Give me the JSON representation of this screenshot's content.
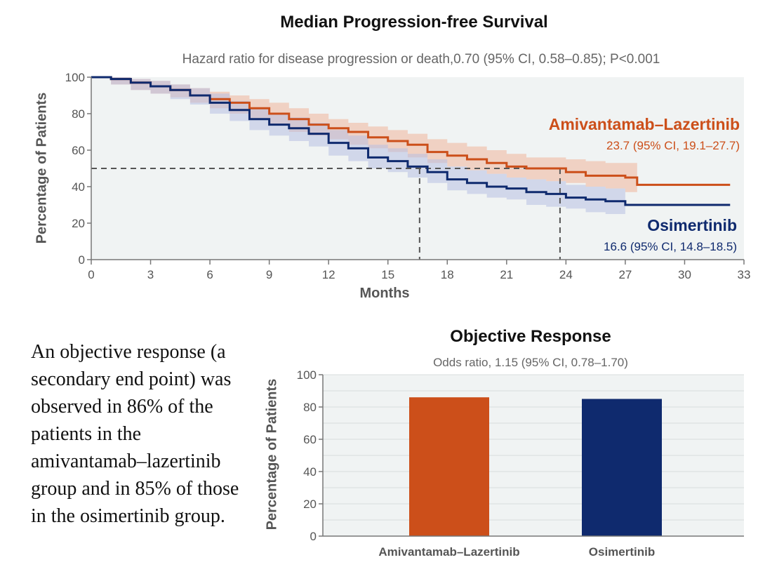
{
  "chart_data": [
    {
      "type": "line",
      "title": "Median Progression-free Survival",
      "subtitle": "Hazard ratio for disease progression or death,0.70 (95% CI, 0.58–0.85); P<0.001",
      "xlabel": "Months",
      "ylabel": "Percentage of Patients",
      "xlim": [
        0,
        33
      ],
      "ylim": [
        0,
        100
      ],
      "xticks": [
        "0",
        "3",
        "6",
        "9",
        "12",
        "15",
        "18",
        "21",
        "24",
        "27",
        "30",
        "33"
      ],
      "yticks": [
        "0",
        "20",
        "40",
        "60",
        "80",
        "100"
      ],
      "grid": false,
      "reference_line_y": 50,
      "series": [
        {
          "name": "Amivantamab–Lazertinib",
          "median_label": "23.7 (95% CI, 19.1–27.7)",
          "median_x": 23.7,
          "color": "#cc4f1a",
          "band_color": "#f0b49a",
          "x": [
            0,
            1,
            2,
            3,
            4,
            5,
            6,
            7,
            8,
            9,
            10,
            11,
            12,
            13,
            14,
            15,
            16,
            17,
            18,
            19,
            20,
            21,
            22,
            23,
            24,
            25,
            26,
            27,
            27.6,
            28,
            29,
            30,
            31,
            32.3
          ],
          "y": [
            100,
            99,
            97,
            95,
            93,
            90,
            88,
            86,
            83,
            80,
            77,
            74,
            72,
            70,
            67,
            65,
            63,
            59,
            57,
            55,
            53,
            51,
            50,
            50,
            48,
            46,
            46,
            45,
            41,
            41,
            41,
            41,
            41,
            41
          ],
          "ci_lower": [
            100,
            96,
            93,
            91,
            89,
            86,
            83,
            80,
            77,
            74,
            70,
            68,
            66,
            63,
            61,
            59,
            56,
            53,
            51,
            49,
            47,
            45,
            44,
            43,
            42,
            40,
            39,
            37,
            37
          ],
          "ci_upper": [
            100,
            100,
            99,
            98,
            96,
            94,
            92,
            90,
            88,
            86,
            83,
            80,
            77,
            75,
            73,
            71,
            69,
            66,
            64,
            62,
            60,
            58,
            56,
            56,
            55,
            54,
            53,
            53,
            53
          ]
        },
        {
          "name": "Osimertinib",
          "median_label": "16.6 (95% CI, 14.8–18.5)",
          "median_x": 16.6,
          "color": "#0f2a6e",
          "band_color": "#b8c0e2",
          "x": [
            0,
            1,
            2,
            3,
            4,
            5,
            6,
            7,
            8,
            9,
            10,
            11,
            12,
            13,
            14,
            15,
            16,
            17,
            18,
            19,
            20,
            21,
            22,
            23,
            24,
            25,
            26,
            27,
            28,
            29,
            30,
            31,
            32.3
          ],
          "y": [
            100,
            99,
            97,
            95,
            93,
            90,
            86,
            82,
            77,
            74,
            72,
            69,
            64,
            61,
            56,
            54,
            51,
            48,
            44,
            42,
            40,
            39,
            37,
            36,
            34,
            33,
            32,
            30,
            30,
            30,
            30,
            30,
            30
          ],
          "ci_lower": [
            100,
            96,
            93,
            91,
            88,
            85,
            80,
            76,
            71,
            68,
            65,
            62,
            57,
            54,
            50,
            48,
            45,
            42,
            38,
            36,
            34,
            33,
            30,
            29,
            28,
            26,
            25,
            24
          ],
          "ci_upper": [
            100,
            100,
            99,
            98,
            96,
            94,
            91,
            87,
            83,
            80,
            78,
            75,
            71,
            68,
            63,
            61,
            58,
            55,
            51,
            49,
            47,
            45,
            44,
            43,
            41,
            40,
            39,
            37
          ]
        }
      ]
    },
    {
      "type": "bar",
      "title": "Objective Response",
      "subtitle": "Odds ratio, 1.15 (95% CI, 0.78–1.70)",
      "xlabel": "",
      "ylabel": "Percentage of Patients",
      "categories": [
        "Amivantamab–Lazertinib",
        "Osimertinib"
      ],
      "values": [
        86,
        85
      ],
      "colors": [
        "#cc4f1a",
        "#0f2a6e"
      ],
      "ylim": [
        0,
        100
      ],
      "yticks": [
        "0",
        "20",
        "40",
        "60",
        "80",
        "100"
      ],
      "grid": true
    }
  ],
  "description_text": "An objective response (a secondary end point) was observed in 86% of the patients in the amivantamab–lazertinib group and in 85% of those in the osimertinib group.",
  "colors": {
    "amivantamab": "#cc4f1a",
    "osimertinib": "#0f2a6e",
    "panel_bg": "#f0f3f3"
  }
}
